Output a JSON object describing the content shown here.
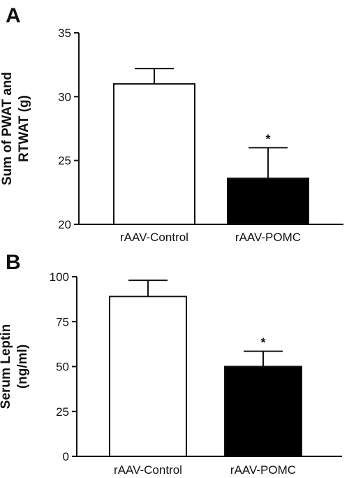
{
  "chart_data": [
    {
      "type": "bar",
      "panel": "A",
      "ylabel_lines": [
        "Sum of PWAT and",
        "RTWAT (g)"
      ],
      "categories": [
        "rAAV-Control",
        "rAAV-POMC"
      ],
      "values": [
        31.0,
        23.6
      ],
      "errors": [
        1.2,
        2.4
      ],
      "bar_colors": [
        "#ffffff",
        "#000000"
      ],
      "significance": [
        "",
        "*"
      ],
      "ylim": [
        20,
        35
      ],
      "yticks": [
        20,
        25,
        30,
        35
      ],
      "grid": false
    },
    {
      "type": "bar",
      "panel": "B",
      "ylabel_lines": [
        "Serum Leptin",
        "(ng/ml)"
      ],
      "categories": [
        "rAAV-Control",
        "rAAV-POMC"
      ],
      "values": [
        89,
        50
      ],
      "errors": [
        9,
        8.5
      ],
      "bar_colors": [
        "#ffffff",
        "#000000"
      ],
      "significance": [
        "",
        "*"
      ],
      "ylim": [
        0,
        100
      ],
      "yticks": [
        0,
        25,
        50,
        75,
        100
      ],
      "grid": false
    }
  ]
}
